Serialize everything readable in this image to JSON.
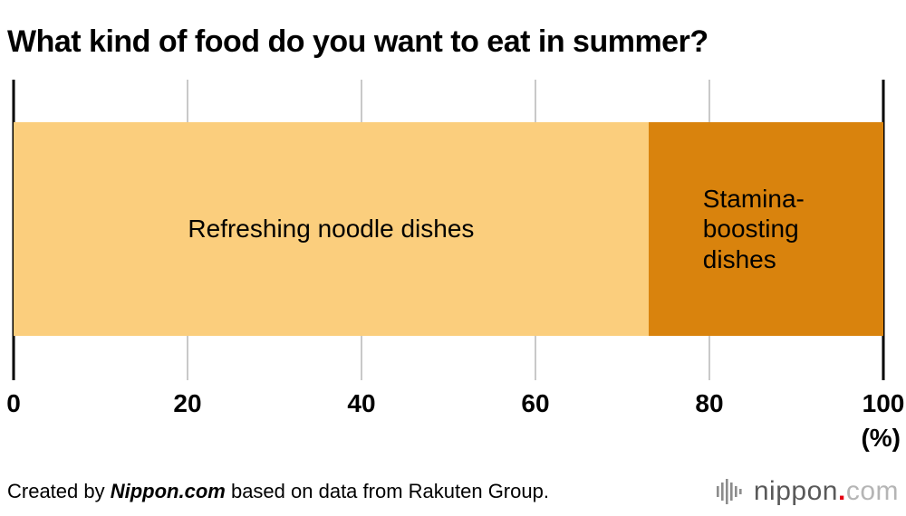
{
  "title": "What kind of food do you want to eat in summer?",
  "chart_data": {
    "type": "bar",
    "orientation": "horizontal",
    "stacked": true,
    "title": "What kind of food do you want to eat in summer?",
    "xlim": [
      0,
      100
    ],
    "x_ticks": [
      0,
      20,
      40,
      60,
      80,
      100
    ],
    "x_unit": "(%)",
    "grid": true,
    "series": [
      {
        "name": "Refreshing noodle dishes",
        "value": 73,
        "color": "#fbce7d"
      },
      {
        "name": "Stamina-boosting dishes",
        "value": 27,
        "color": "#d9830d"
      }
    ]
  },
  "footer": {
    "credit_prefix": "Created by ",
    "credit_source": "Nippon.com",
    "credit_suffix": " based on data from Rakuten Group.",
    "logo": {
      "name": "nippon",
      "dot": ".",
      "tld": "com"
    }
  }
}
